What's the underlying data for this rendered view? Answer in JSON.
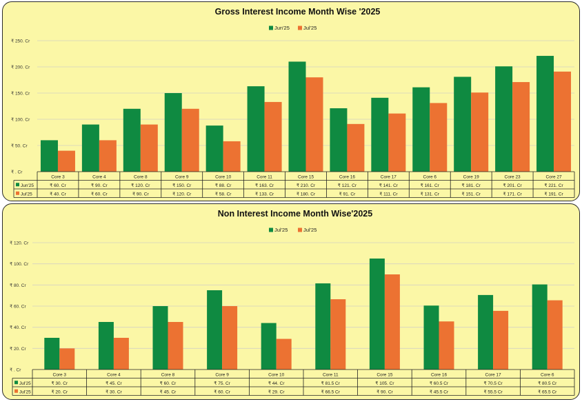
{
  "chart_data": [
    {
      "type": "bar",
      "title": "Gross Interest Income Month Wise '2025",
      "categories": [
        "Core 3",
        "Core 4",
        "Core 8",
        "Core 9",
        "Core 10",
        "Core 11",
        "Core 15",
        "Core 16",
        "Core 17",
        "Core 6",
        "Core 19",
        "Core 23",
        "Core 27"
      ],
      "series": [
        {
          "name": "Jun'25",
          "color": "#0f8a41",
          "values": [
            60,
            90,
            120,
            150,
            88,
            163,
            210,
            121,
            141,
            161,
            181,
            201,
            221
          ],
          "labels": [
            "₹ 60. Cr",
            "₹ 90. Cr",
            "₹ 120. Cr",
            "₹ 150. Cr",
            "₹ 88. Cr",
            "₹ 163. Cr",
            "₹ 210. Cr",
            "₹ 121. Cr",
            "₹ 141. Cr",
            "₹ 161. Cr",
            "₹ 181. Cr",
            "₹ 201. Cr",
            "₹ 221. Cr"
          ]
        },
        {
          "name": "Jul'25",
          "color": "#ec7232",
          "values": [
            40,
            60,
            90,
            120,
            58,
            133,
            180,
            91,
            111,
            131,
            151,
            171,
            191
          ],
          "labels": [
            "₹ 40. Cr",
            "₹ 60. Cr",
            "₹ 90. Cr",
            "₹ 120. Cr",
            "₹ 58. Cr",
            "₹ 133. Cr",
            "₹ 180. Cr",
            "₹ 91. Cr",
            "₹ 111. Cr",
            "₹ 131. Cr",
            "₹ 151. Cr",
            "₹ 171. Cr",
            "₹ 191. Cr"
          ]
        }
      ],
      "yticks": [
        0,
        50,
        100,
        150,
        200,
        250
      ],
      "ytick_labels": [
        "₹ . Cr",
        "₹ 50. Cr",
        "₹ 100. Cr",
        "₹ 150. Cr",
        "₹ 200. Cr",
        "₹ 250. Cr"
      ],
      "ylim": [
        0,
        250
      ],
      "grid": true,
      "legend_position": "top-center"
    },
    {
      "type": "bar",
      "title": "Non Interest Income Month Wise'2025",
      "categories": [
        "Core 3",
        "Core 4",
        "Core 8",
        "Core 9",
        "Core 10",
        "Core 11",
        "Core 15",
        "Core 16",
        "Core 17",
        "Core 6"
      ],
      "series": [
        {
          "name": "Jul'25",
          "color": "#0f8a41",
          "values": [
            30,
            45,
            60,
            75,
            44,
            81.5,
            105,
            60.5,
            70.5,
            80.5
          ],
          "labels": [
            "₹ 30. Cr",
            "₹ 45. Cr",
            "₹ 60. Cr",
            "₹ 75. Cr",
            "₹ 44. Cr",
            "₹ 81.5 Cr",
            "₹ 105. Cr",
            "₹ 60.5 Cr",
            "₹ 70.5 Cr",
            "₹ 80.5 Cr"
          ]
        },
        {
          "name": "Jul'25",
          "color": "#ec7232",
          "values": [
            20,
            30,
            45,
            60,
            29,
            66.5,
            90,
            45.5,
            55.5,
            65.5
          ],
          "labels": [
            "₹ 20. Cr",
            "₹ 30. Cr",
            "₹ 45. Cr",
            "₹ 60. Cr",
            "₹ 29. Cr",
            "₹ 66.5 Cr",
            "₹ 90. Cr",
            "₹ 45.5 Cr",
            "₹ 55.5 Cr",
            "₹ 65.5 Cr"
          ]
        }
      ],
      "yticks": [
        0,
        20,
        40,
        60,
        80,
        100,
        120
      ],
      "ytick_labels": [
        "₹ . Cr",
        "₹ 20. Cr",
        "₹ 40. Cr",
        "₹ 60. Cr",
        "₹ 80. Cr",
        "₹ 100. Cr",
        "₹ 120. Cr"
      ],
      "ylim": [
        0,
        120
      ],
      "grid": true,
      "legend_position": "top-center"
    }
  ]
}
